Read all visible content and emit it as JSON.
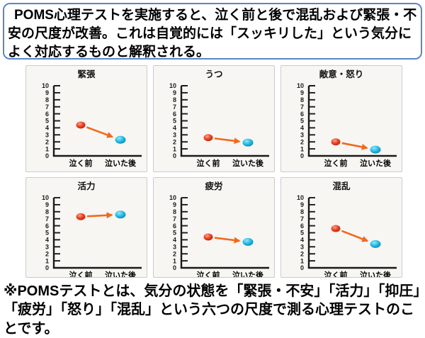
{
  "header": {
    "text": "POMS心理テストを実施すると、泣く前と後で混乱および緊張・不安の尺度が改善。これは自覚的には「スッキリした」という気分によく対応するものと解釈される。"
  },
  "footer": {
    "text": "※POMSテストとは、気分の状態を「緊張・不安」「活力」「抑圧」「疲労」「怒り」「混乱」という六つの尺度で測る心理テストのことです。"
  },
  "chart_data": [
    {
      "type": "scatter",
      "title": "緊張",
      "categories": [
        "泣く前",
        "泣いた後"
      ],
      "values": [
        4.4,
        2.3
      ],
      "ylim": [
        0,
        10
      ],
      "yticks": [
        0,
        1,
        2,
        3,
        4,
        5,
        6,
        7,
        8,
        9,
        10
      ],
      "grid": false,
      "annotation": "arrow-from-before-to-after"
    },
    {
      "type": "scatter",
      "title": "うつ",
      "categories": [
        "泣く前",
        "泣いた後"
      ],
      "values": [
        2.6,
        1.9
      ],
      "ylim": [
        0,
        10
      ],
      "yticks": [
        0,
        1,
        2,
        3,
        4,
        5,
        6,
        7,
        8,
        9,
        10
      ],
      "grid": false,
      "annotation": "arrow-from-before-to-after"
    },
    {
      "type": "scatter",
      "title": "敵意・怒り",
      "categories": [
        "泣く前",
        "泣いた後"
      ],
      "values": [
        2.0,
        0.9
      ],
      "ylim": [
        0,
        10
      ],
      "yticks": [
        0,
        1,
        2,
        3,
        4,
        5,
        6,
        7,
        8,
        9,
        10
      ],
      "grid": false,
      "annotation": "arrow-from-before-to-after"
    },
    {
      "type": "scatter",
      "title": "活力",
      "categories": [
        "泣く前",
        "泣いた後"
      ],
      "values": [
        7.3,
        7.6
      ],
      "ylim": [
        0,
        10
      ],
      "yticks": [
        0,
        1,
        2,
        3,
        4,
        5,
        6,
        7,
        8,
        9,
        10
      ],
      "grid": false,
      "annotation": "arrow-from-before-to-after"
    },
    {
      "type": "scatter",
      "title": "疲労",
      "categories": [
        "泣く前",
        "泣いた後"
      ],
      "values": [
        4.4,
        3.7
      ],
      "ylim": [
        0,
        10
      ],
      "yticks": [
        0,
        1,
        2,
        3,
        4,
        5,
        6,
        7,
        8,
        9,
        10
      ],
      "grid": false,
      "annotation": "arrow-from-before-to-after"
    },
    {
      "type": "scatter",
      "title": "混乱",
      "categories": [
        "泣く前",
        "泣いた後"
      ],
      "values": [
        5.6,
        3.4
      ],
      "ylim": [
        0,
        10
      ],
      "yticks": [
        0,
        1,
        2,
        3,
        4,
        5,
        6,
        7,
        8,
        9,
        10
      ],
      "grid": false,
      "annotation": "arrow-from-before-to-after"
    }
  ],
  "colors": {
    "before_point": "#e63b1f",
    "before_point_light": "#fba287",
    "before_point_dark": "#b52507",
    "after_point": "#22b6e0",
    "after_point_light": "#8fe9fb",
    "after_point_dark": "#0d7fb0",
    "arrow": "#f2691c",
    "header_border": "#5b86c8",
    "panel_background": "#f7f6f3",
    "panel_border": "#cbcbcb",
    "text": "#000000"
  }
}
